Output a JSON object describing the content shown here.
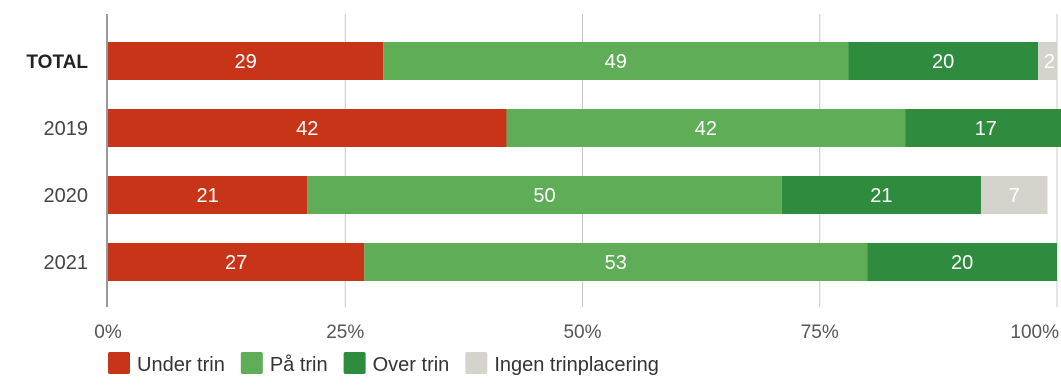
{
  "chart_data": {
    "type": "bar",
    "orientation": "horizontal",
    "stacked": true,
    "normalized": true,
    "categories": [
      "TOTAL",
      "2019",
      "2020",
      "2021"
    ],
    "bold_categories": [
      "TOTAL"
    ],
    "xlim": [
      0,
      100
    ],
    "xticks": [
      0,
      25,
      50,
      75,
      100
    ],
    "xtick_labels": [
      "0%",
      "25%",
      "50%",
      "75%",
      "100%"
    ],
    "grid": "vertical",
    "legend_position": "bottom-left",
    "series": [
      {
        "name": "Under trin",
        "color": "#c73418",
        "label_color": "#ffffff",
        "values": [
          29,
          42,
          21,
          27
        ],
        "labels": [
          "29",
          "42",
          "21",
          "27"
        ]
      },
      {
        "name": "På trin",
        "color": "#5fad56",
        "label_color": "#ffffff",
        "values": [
          49,
          42,
          50,
          53
        ],
        "labels": [
          "49",
          "42",
          "50",
          "53"
        ]
      },
      {
        "name": "Over trin",
        "color": "#2f8c3e",
        "label_color": "#ffffff",
        "values": [
          20,
          17,
          21,
          20
        ],
        "labels": [
          "20",
          "17",
          "21",
          "20"
        ]
      },
      {
        "name": "Ingen trinplacering",
        "color": "#d4d4cc",
        "label_color": "#ffffff",
        "values": [
          2,
          0,
          7,
          0
        ],
        "labels": [
          "2",
          "",
          "7",
          ""
        ]
      }
    ],
    "title": "",
    "xlabel": "",
    "ylabel": ""
  }
}
